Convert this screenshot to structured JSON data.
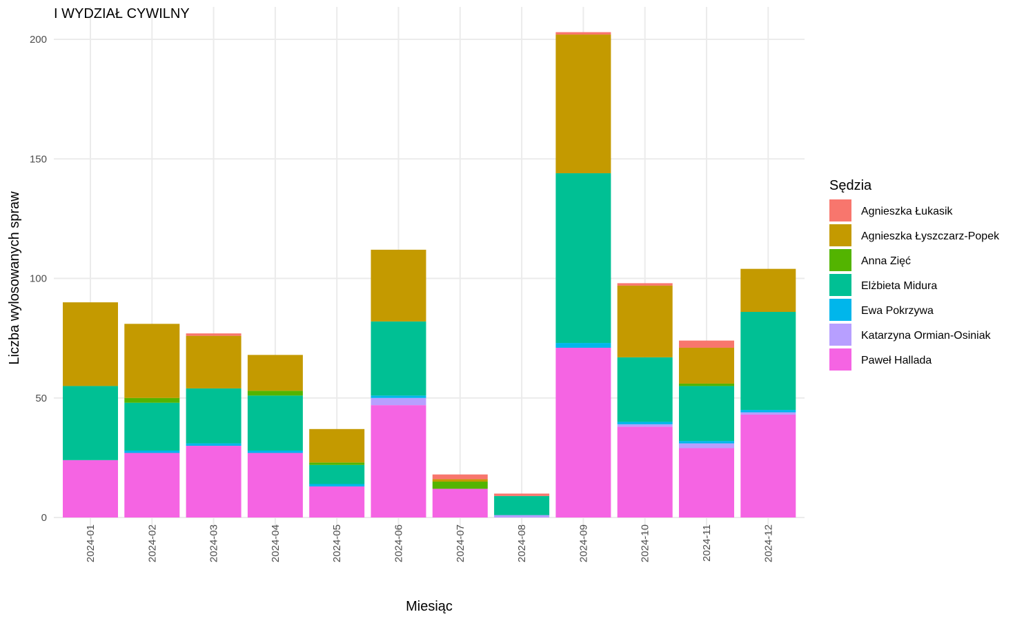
{
  "chart_data": {
    "type": "bar",
    "stacked": true,
    "title": "I WYDZIAŁ CYWILNY",
    "xlabel": "Miesiąc",
    "ylabel": "Liczba wylosowanych spraw",
    "ylim": [
      0,
      210
    ],
    "yticks": [
      0,
      50,
      100,
      150,
      200
    ],
    "grid": true,
    "legend_title": "Sędzia",
    "legend_position": "right",
    "categories": [
      "2024-01",
      "2024-02",
      "2024-03",
      "2024-04",
      "2024-05",
      "2024-06",
      "2024-07",
      "2024-08",
      "2024-09",
      "2024-10",
      "2024-11",
      "2024-12"
    ],
    "series": [
      {
        "name": "Paweł Hallada",
        "color": "#F564E3",
        "values": [
          24,
          27,
          30,
          27,
          13,
          47,
          12,
          0,
          71,
          38,
          29,
          43
        ]
      },
      {
        "name": "Katarzyna Ormian-Osiniak",
        "color": "#B79FFF",
        "values": [
          0,
          0,
          0,
          0,
          0,
          3,
          0,
          1,
          0,
          1,
          2,
          1
        ]
      },
      {
        "name": "Ewa Pokrzywa",
        "color": "#00B6EB",
        "values": [
          0,
          1,
          1,
          1,
          1,
          1,
          0,
          0,
          2,
          1,
          1,
          1
        ]
      },
      {
        "name": "Elżbieta Midura",
        "color": "#00C094",
        "values": [
          31,
          20,
          23,
          23,
          8,
          31,
          0,
          8,
          71,
          27,
          23,
          41
        ]
      },
      {
        "name": "Anna Zięć",
        "color": "#53B400",
        "values": [
          0,
          2,
          0,
          2,
          1,
          0,
          3,
          0,
          0,
          0,
          1,
          0
        ]
      },
      {
        "name": "Agnieszka Łyszczarz-Popek",
        "color": "#C49A00",
        "values": [
          35,
          31,
          22,
          15,
          14,
          30,
          1,
          0,
          58,
          30,
          15,
          18
        ]
      },
      {
        "name": "Agnieszka Łukasik",
        "color": "#F8766D",
        "values": [
          0,
          0,
          1,
          0,
          0,
          0,
          2,
          1,
          1,
          1,
          3,
          0
        ]
      }
    ],
    "legend_order": [
      "Agnieszka Łukasik",
      "Agnieszka Łyszczarz-Popek",
      "Anna Zięć",
      "Elżbieta Midura",
      "Ewa Pokrzywa",
      "Katarzyna Ormian-Osiniak",
      "Paweł Hallada"
    ]
  }
}
